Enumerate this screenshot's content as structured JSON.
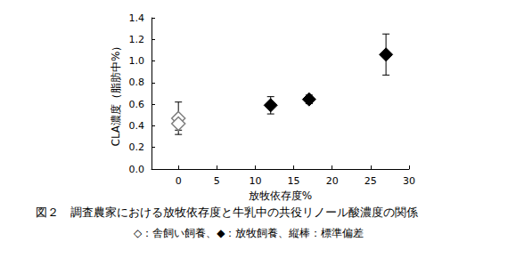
{
  "chart_data": {
    "type": "scatter",
    "title": "図２　調査農家における放牧依存度と牛乳中の共役リノール酸濃度の関係",
    "subtitle": "◇：舎飼い飼養、◆：放牧飼養、縦棒：標準偏差",
    "x_label": "放牧依存度%",
    "y_label": "CLA濃度（脂肪中%）",
    "xlim": [
      -3.5,
      30
    ],
    "xticks": [
      0,
      5,
      10,
      15,
      20,
      25,
      30
    ],
    "ylim": [
      0,
      1.4
    ],
    "yticks": [
      {
        "value": 0,
        "label": "0.0"
      },
      0.2,
      0.4,
      0.6,
      0.8,
      {
        "value": 1,
        "label": "1.0"
      },
      1.2,
      1.4
    ],
    "grid": false,
    "series": [
      {
        "marker": "open_diamond",
        "color": "#7f7f7f",
        "x": [
          0,
          0
        ],
        "values": [
          0.47,
          0.42
        ],
        "error": [
          0.15,
          0.06
        ]
      },
      {
        "marker": "diamond",
        "color": "#000000",
        "x": [
          12,
          17,
          27
        ],
        "values": [
          0.59,
          0.645,
          1.06
        ],
        "error": [
          0.08,
          0.04,
          0.19
        ]
      }
    ]
  }
}
